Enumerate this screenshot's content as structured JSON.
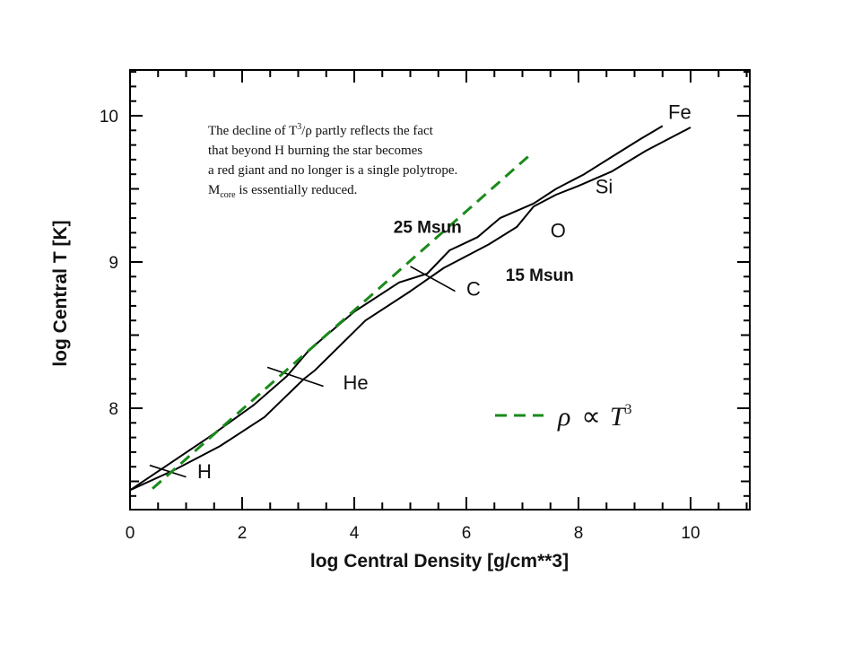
{
  "chart_data": {
    "type": "line",
    "title": "",
    "xlabel": "log Central Density [g/cm**3]",
    "ylabel": "log Central T [K]",
    "xlim": [
      0,
      11
    ],
    "ylim": [
      7.4,
      10.3
    ],
    "x_ticks": [
      "0",
      "2",
      "4",
      "6",
      "8",
      "10"
    ],
    "y_ticks": [
      "8",
      "9",
      "10"
    ],
    "grid": false,
    "series": [
      {
        "name": "25 Msun",
        "x": [
          0.0,
          0.7,
          1.4,
          2.2,
          2.8,
          3.2,
          4.0,
          4.8,
          5.3,
          5.7,
          6.2,
          6.6,
          7.2,
          7.6,
          8.1,
          8.6,
          9.1,
          9.5
        ],
        "y": [
          7.44,
          7.62,
          7.8,
          8.02,
          8.22,
          8.4,
          8.66,
          8.86,
          8.92,
          9.08,
          9.17,
          9.3,
          9.4,
          9.5,
          9.6,
          9.72,
          9.84,
          9.93
        ]
      },
      {
        "name": "15 Msun",
        "x": [
          0.0,
          0.8,
          1.6,
          2.4,
          3.1,
          3.3,
          4.2,
          5.0,
          5.6,
          6.4,
          6.9,
          7.2,
          7.6,
          8.0,
          8.6,
          9.2,
          9.7,
          10.0
        ],
        "y": [
          7.44,
          7.58,
          7.74,
          7.94,
          8.2,
          8.26,
          8.6,
          8.8,
          8.96,
          9.12,
          9.24,
          9.38,
          9.46,
          9.52,
          9.62,
          9.76,
          9.86,
          9.92
        ]
      }
    ],
    "reference_line": {
      "label": "ρ ∝ T³",
      "x": [
        0.4,
        7.1
      ],
      "y": [
        7.45,
        9.72
      ],
      "color": "#1a8a1a",
      "style": "dashed"
    },
    "annotations": [
      {
        "text": "H",
        "x": 1.2,
        "y": 7.52
      },
      {
        "text": "He",
        "x": 3.8,
        "y": 8.13
      },
      {
        "text": "C",
        "x": 6.0,
        "y": 8.77
      },
      {
        "text": "O",
        "x": 7.5,
        "y": 9.17
      },
      {
        "text": "Si",
        "x": 8.3,
        "y": 9.47
      },
      {
        "text": "Fe",
        "x": 9.6,
        "y": 9.98
      },
      {
        "text": "25 Msun",
        "x": 4.7,
        "y": 9.2
      },
      {
        "text": "15 Msun",
        "x": 6.7,
        "y": 8.87
      }
    ]
  },
  "note": {
    "line1_pre": "The decline of T",
    "line1_sup": "3",
    "line1_post": "/ρ partly reflects the fact",
    "line2": "that beyond H burning the star becomes",
    "line3": "a red giant and no longer is a single polytrope.",
    "line4_pre": "M",
    "line4_sub": "core",
    "line4_post": " is essentially reduced."
  },
  "legend": {
    "rho": "ρ",
    "propto": "∝",
    "t": "T",
    "exp": "3"
  }
}
